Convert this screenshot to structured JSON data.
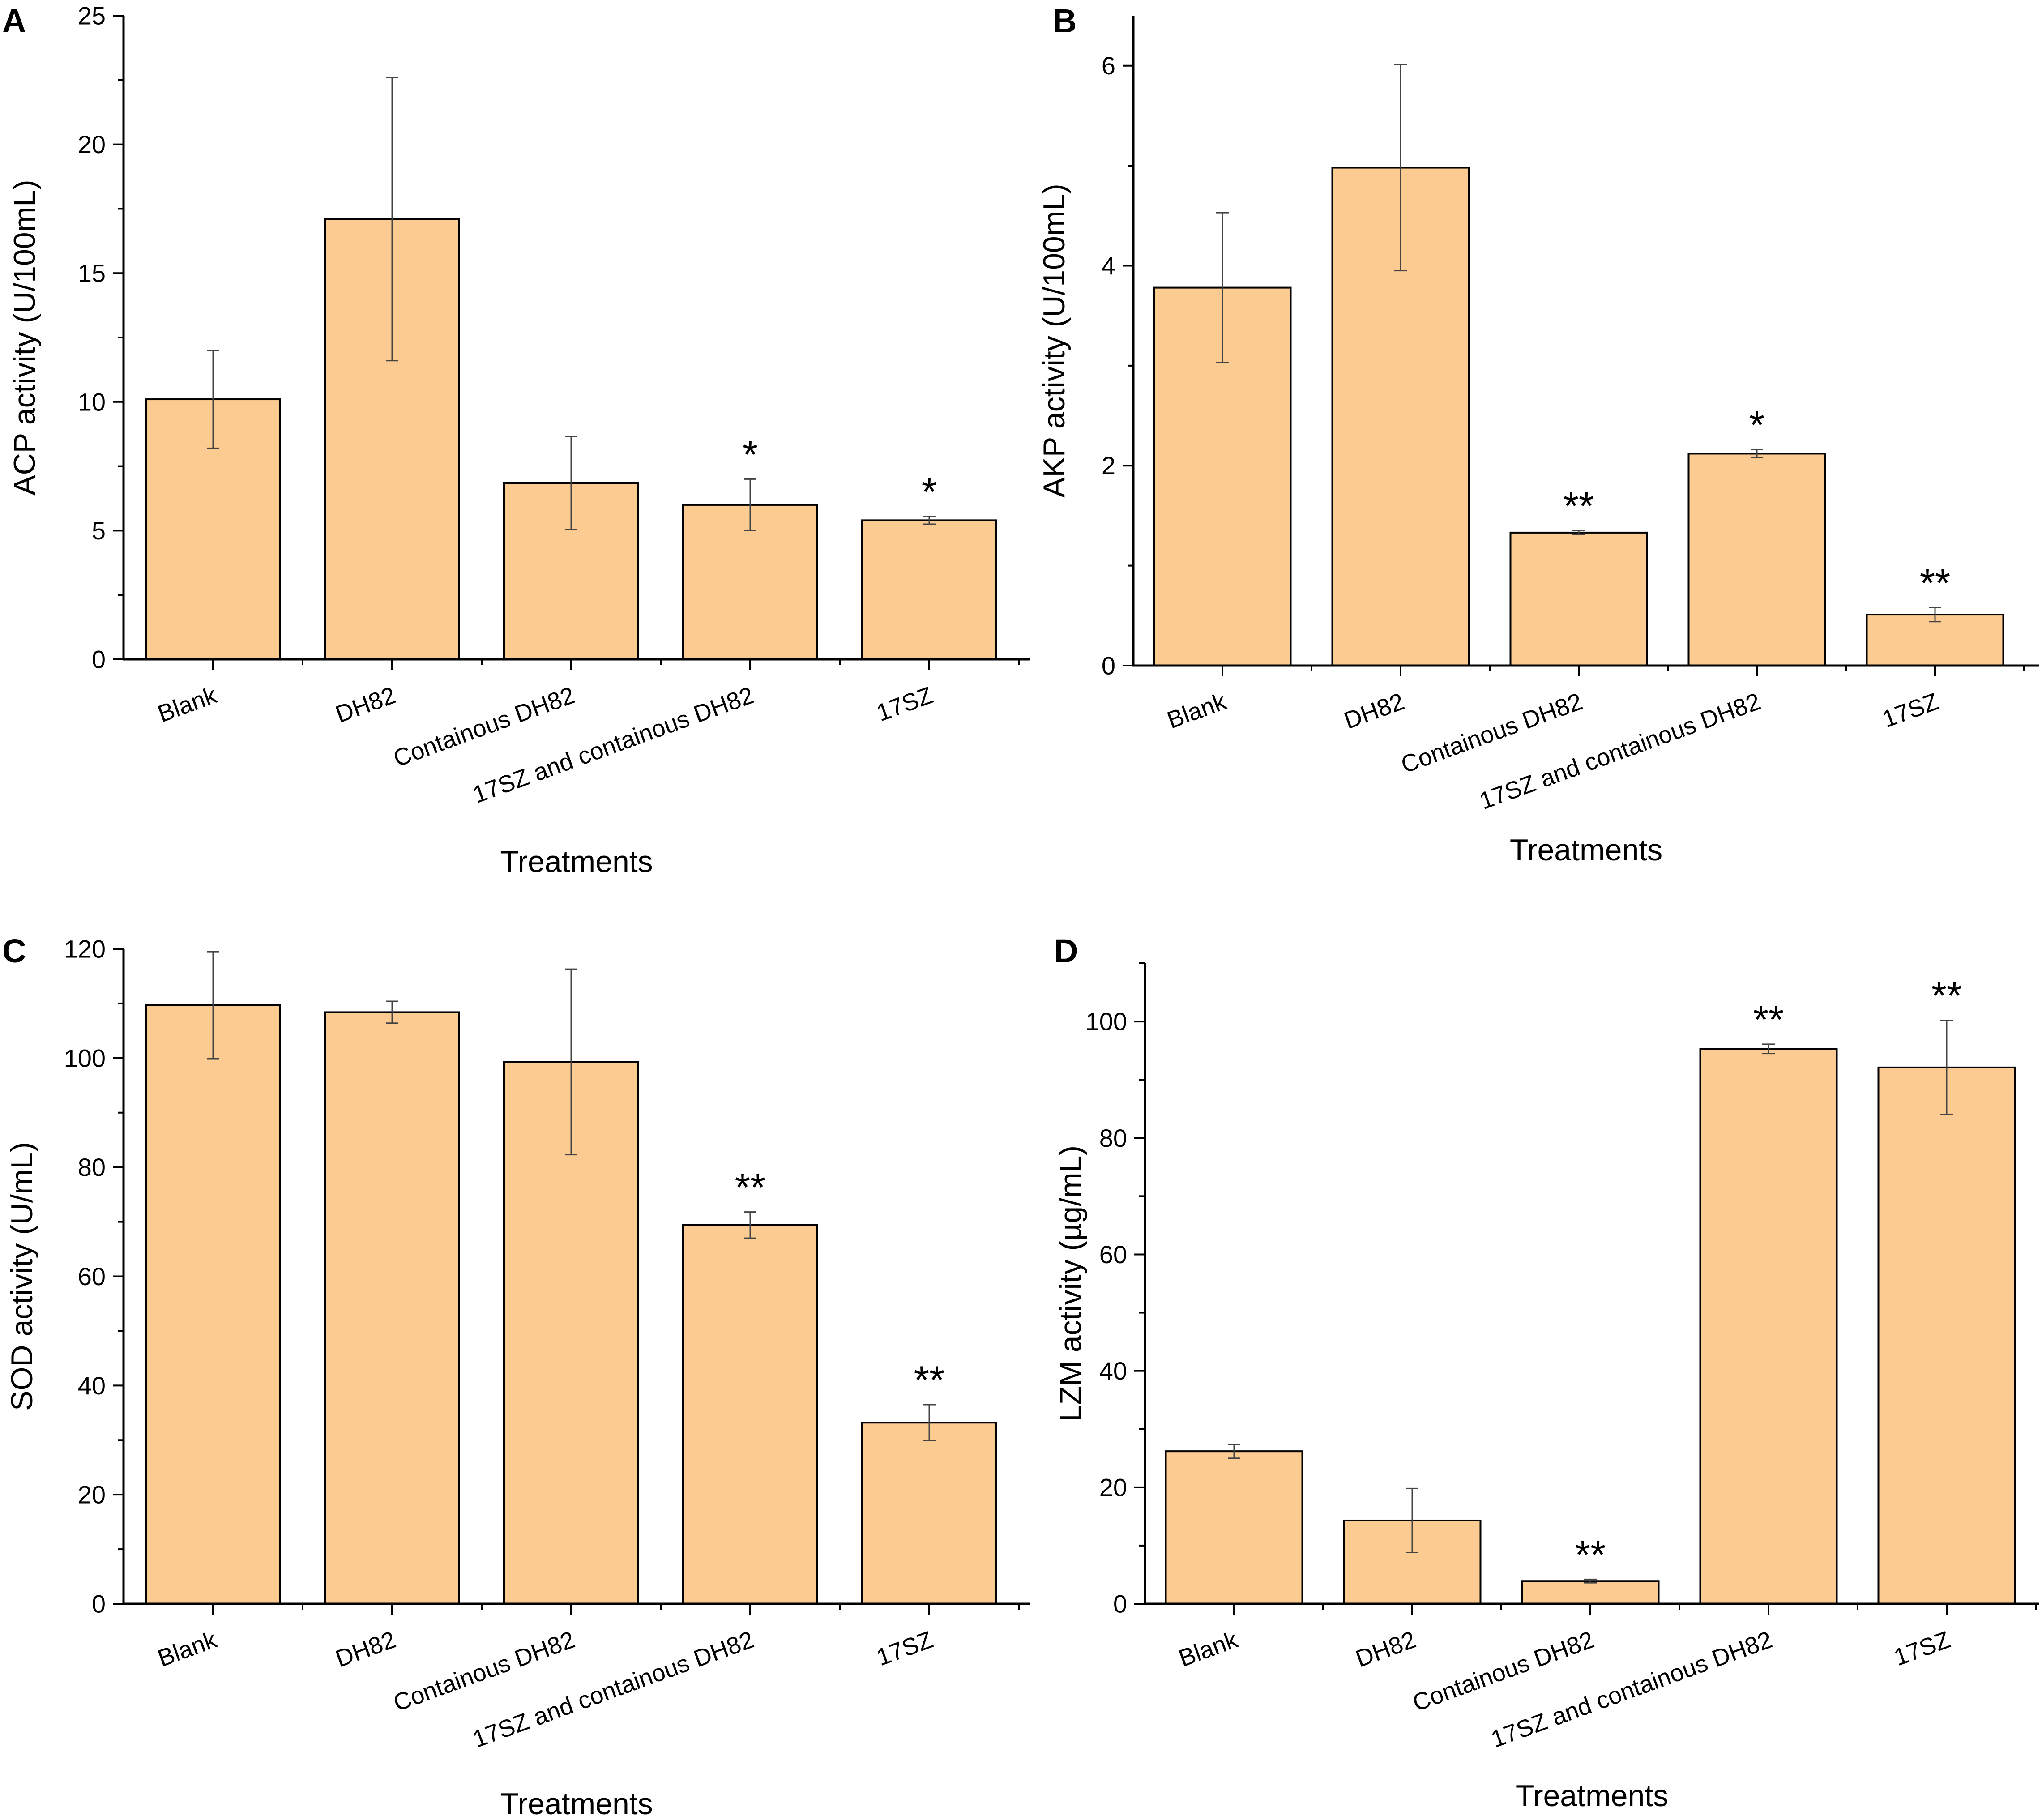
{
  "figure": {
    "bar_color": "#FCCB92",
    "bar_edge_color": "#000000",
    "axis_color": "#000000",
    "background": "#FFFFFF"
  },
  "chart_data": [
    {
      "panel_label": "A",
      "type": "bar",
      "categories": [
        "Blank",
        "DH82",
        "Containous DH82",
        "17SZ and containous DH82",
        "17SZ"
      ],
      "values": [
        10.1,
        17.1,
        6.85,
        6.0,
        5.4
      ],
      "errors": [
        1.9,
        5.5,
        1.8,
        1.0,
        0.15
      ],
      "significance": [
        "",
        "",
        "",
        "*",
        "*"
      ],
      "title": "",
      "xlabel": "Treatments",
      "ylabel": "ACP activity (U/100mL)",
      "ylim": [
        0,
        25
      ],
      "yticks": [
        0,
        5,
        10,
        15,
        20,
        25
      ],
      "grid": false
    },
    {
      "panel_label": "B",
      "type": "bar",
      "categories": [
        "Blank",
        "DH82",
        "Containous DH82",
        "17SZ and containous DH82",
        "17SZ"
      ],
      "values": [
        3.78,
        4.98,
        1.33,
        2.12,
        0.51
      ],
      "errors": [
        0.75,
        1.03,
        0.02,
        0.04,
        0.07
      ],
      "significance": [
        "",
        "",
        "**",
        "*",
        "**"
      ],
      "title": "",
      "xlabel": "Treatments",
      "ylabel": "AKP activity (U/100mL)",
      "ylim": [
        0,
        6.5
      ],
      "yticks": [
        0,
        2,
        4,
        6
      ],
      "grid": false
    },
    {
      "panel_label": "C",
      "type": "bar",
      "categories": [
        "Blank",
        "DH82",
        "Containous DH82",
        "17SZ and containous DH82",
        "17SZ"
      ],
      "values": [
        109.7,
        108.4,
        99.3,
        69.4,
        33.2
      ],
      "errors": [
        9.8,
        2.0,
        17.0,
        2.4,
        3.3
      ],
      "significance": [
        "",
        "",
        "",
        "**",
        "**"
      ],
      "title": "",
      "xlabel": "Treatments",
      "ylabel": "SOD activity (U/mL)",
      "ylim": [
        0,
        120
      ],
      "yticks": [
        0,
        20,
        40,
        60,
        80,
        100,
        120
      ],
      "grid": false
    },
    {
      "panel_label": "D",
      "type": "bar",
      "categories": [
        "Blank",
        "DH82",
        "Containous DH82",
        "17SZ and containous DH82",
        "17SZ"
      ],
      "values": [
        26.2,
        14.3,
        3.9,
        95.3,
        92.1
      ],
      "errors": [
        1.2,
        5.5,
        0.3,
        0.8,
        8.1
      ],
      "significance": [
        "",
        "",
        "**",
        "**",
        "**"
      ],
      "title": "",
      "xlabel": "Treatments",
      "ylabel": "LZM activity (µg/mL)",
      "ylim": [
        0,
        110
      ],
      "yticks": [
        0,
        20,
        40,
        60,
        80,
        100
      ],
      "grid": false
    }
  ]
}
